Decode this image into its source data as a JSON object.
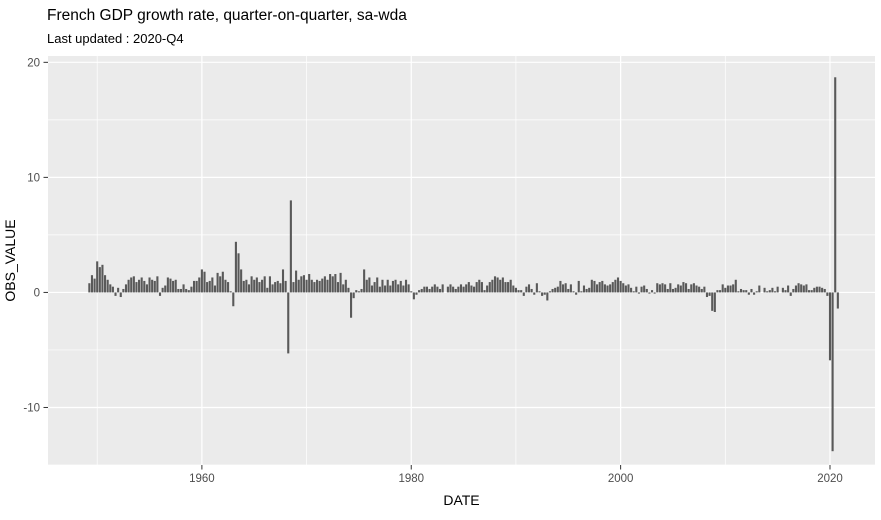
{
  "header": {
    "title": "French GDP growth rate, quarter-on-quarter, sa-wda",
    "subtitle": "Last updated : 2020-Q4"
  },
  "chart_data": {
    "type": "bar",
    "title": "French GDP growth rate, quarter-on-quarter, sa-wda",
    "subtitle": "Last updated : 2020-Q4",
    "xlabel": "DATE",
    "ylabel": "OBS_VALUE",
    "x_ticks": [
      1960,
      1980,
      2000,
      2020
    ],
    "x_minor_ticks": [
      1950,
      1970,
      1990,
      2010
    ],
    "y_ticks": [
      20,
      10,
      0,
      -10
    ],
    "y_minor_ticks": [
      15,
      5,
      -5,
      -15
    ],
    "xlim": [
      1945.3,
      2024.3
    ],
    "ylim": [
      -15.0,
      20.55
    ],
    "grid": true,
    "legend": "none",
    "panel_bg": "#EBEBEB",
    "grid_color": "#FFFFFF",
    "bar_color": "#595959",
    "tick_color": "#333333",
    "frequency": "quarterly",
    "start_period": "1949-Q2",
    "end_period": "2020-Q4",
    "values": [
      0.8,
      1.5,
      1.2,
      2.7,
      2.2,
      2.4,
      1.5,
      1.1,
      0.7,
      0.5,
      -0.3,
      0.4,
      -0.4,
      0.3,
      0.7,
      1.1,
      1.3,
      1.4,
      0.9,
      1.1,
      1.3,
      1.0,
      0.7,
      1.3,
      1.1,
      1.0,
      1.4,
      -0.3,
      0.4,
      0.6,
      1.3,
      1.2,
      1.0,
      1.1,
      0.3,
      0.3,
      0.7,
      0.3,
      0.2,
      0.5,
      1.0,
      1.0,
      1.3,
      2.0,
      1.8,
      0.9,
      1.0,
      1.3,
      0.6,
      1.7,
      1.4,
      1.8,
      1.1,
      0.9,
      0.1,
      -1.2,
      4.4,
      3.4,
      2.0,
      1.0,
      1.1,
      0.7,
      1.4,
      1.1,
      1.3,
      0.9,
      1.1,
      1.4,
      0.4,
      1.4,
      0.7,
      0.9,
      1.0,
      0.8,
      2.0,
      1.0,
      -5.3,
      8.0,
      0.9,
      1.9,
      1.1,
      1.4,
      1.5,
      1.1,
      1.6,
      1.1,
      0.9,
      1.1,
      1.0,
      1.2,
      1.4,
      1.1,
      1.6,
      1.4,
      1.6,
      0.9,
      1.7,
      0.7,
      1.1,
      0.4,
      -2.2,
      -0.5,
      0.2,
      0.1,
      0.3,
      2.0,
      1.1,
      1.3,
      0.6,
      0.9,
      1.3,
      0.5,
      1.1,
      0.6,
      1.1,
      0.6,
      1.0,
      1.1,
      0.7,
      1.0,
      0.6,
      1.1,
      0.7,
      0.1,
      -0.6,
      -0.2,
      0.2,
      0.3,
      0.5,
      0.5,
      0.3,
      0.5,
      0.7,
      0.5,
      0.3,
      0.7,
      0.0,
      0.5,
      0.7,
      0.5,
      0.3,
      0.5,
      0.7,
      0.5,
      0.7,
      0.9,
      0.6,
      0.5,
      0.9,
      1.1,
      0.9,
      0.2,
      0.6,
      0.9,
      1.1,
      1.4,
      1.3,
      1.1,
      1.3,
      0.9,
      0.9,
      1.1,
      0.6,
      0.4,
      0.2,
      0.2,
      -0.3,
      0.5,
      0.7,
      0.3,
      -0.2,
      0.8,
      0.1,
      -0.3,
      -0.2,
      -0.7,
      0.1,
      0.3,
      0.4,
      0.5,
      1.0,
      0.7,
      0.8,
      0.3,
      0.7,
      0.1,
      -0.2,
      1.0,
      0.1,
      0.6,
      0.3,
      0.4,
      1.1,
      1.0,
      0.7,
      0.9,
      1.0,
      0.7,
      0.6,
      0.7,
      0.9,
      1.1,
      1.3,
      1.0,
      0.8,
      0.6,
      0.7,
      0.4,
      0.1,
      0.5,
      -0.1,
      0.5,
      0.6,
      0.3,
      -0.1,
      0.2,
      -0.1,
      0.8,
      0.7,
      0.8,
      0.7,
      0.3,
      0.8,
      0.3,
      0.4,
      0.7,
      0.6,
      0.9,
      0.8,
      0.3,
      0.7,
      0.8,
      0.6,
      0.5,
      0.3,
      0.5,
      -0.4,
      -0.3,
      -1.6,
      -1.7,
      0.2,
      0.2,
      0.7,
      0.4,
      0.6,
      0.6,
      0.7,
      1.1,
      0.1,
      0.3,
      0.2,
      0.2,
      -0.2,
      0.3,
      -0.2,
      0.1,
      0.6,
      0.0,
      0.4,
      0.1,
      0.2,
      0.4,
      0.1,
      0.5,
      0.0,
      0.4,
      0.2,
      0.6,
      -0.3,
      0.3,
      0.6,
      0.8,
      0.7,
      0.6,
      0.7,
      0.2,
      0.2,
      0.4,
      0.5,
      0.5,
      0.4,
      0.3,
      -0.3,
      -5.9,
      -13.8,
      18.7,
      -1.4
    ]
  }
}
